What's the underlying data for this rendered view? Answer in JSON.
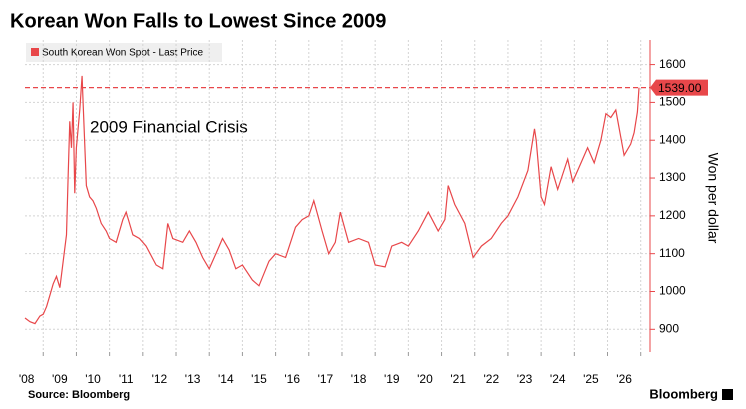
{
  "chart_data": {
    "type": "line",
    "title": "Korean Won Falls to Lowest Since 2009",
    "y_label": "Won per dollar",
    "source": "Source: Bloomberg",
    "brand": "Bloomberg",
    "annotation": "2009 Financial Crisis",
    "grid": true,
    "reference_line": {
      "value": 1539,
      "label": "1539.00",
      "color": "#e8474a"
    },
    "xlim": [
      2007.45,
      2026.28
    ],
    "ylim": [
      840,
      1665
    ],
    "yticks": [
      900,
      1000,
      1100,
      1200,
      1300,
      1400,
      1500,
      1600
    ],
    "xticks": [
      {
        "value": 2008,
        "label": "'08"
      },
      {
        "value": 2009,
        "label": "'09"
      },
      {
        "value": 2010,
        "label": "'10"
      },
      {
        "value": 2011,
        "label": "'11"
      },
      {
        "value": 2012,
        "label": "'12"
      },
      {
        "value": 2013,
        "label": "'13"
      },
      {
        "value": 2014,
        "label": "'14"
      },
      {
        "value": 2015,
        "label": "'15"
      },
      {
        "value": 2016,
        "label": "'16"
      },
      {
        "value": 2017,
        "label": "'17"
      },
      {
        "value": 2018,
        "label": "'18"
      },
      {
        "value": 2019,
        "label": "'19"
      },
      {
        "value": 2020,
        "label": "'20"
      },
      {
        "value": 2021,
        "label": "'21"
      },
      {
        "value": 2022,
        "label": "'22"
      },
      {
        "value": 2023,
        "label": "'23"
      },
      {
        "value": 2024,
        "label": "'24"
      },
      {
        "value": 2025,
        "label": "'25"
      },
      {
        "value": 2026,
        "label": "'26"
      }
    ],
    "series": [
      {
        "name": "South Korean Won Spot - Last Price",
        "color": "#e8474a",
        "x": [
          2007.45,
          2007.6,
          2007.75,
          2007.9,
          2008.0,
          2008.1,
          2008.2,
          2008.3,
          2008.4,
          2008.5,
          2008.6,
          2008.7,
          2008.75,
          2008.8,
          2008.85,
          2008.9,
          2008.95,
          2009.0,
          2009.1,
          2009.17,
          2009.2,
          2009.3,
          2009.4,
          2009.5,
          2009.6,
          2009.75,
          2009.9,
          2010.0,
          2010.2,
          2010.4,
          2010.5,
          2010.7,
          2010.9,
          2011.1,
          2011.4,
          2011.6,
          2011.75,
          2011.9,
          2012.2,
          2012.4,
          2012.6,
          2012.8,
          2013.0,
          2013.2,
          2013.4,
          2013.6,
          2013.8,
          2014.0,
          2014.3,
          2014.5,
          2014.8,
          2015.0,
          2015.3,
          2015.6,
          2015.8,
          2016.0,
          2016.15,
          2016.4,
          2016.6,
          2016.8,
          2016.95,
          2017.2,
          2017.5,
          2017.8,
          2018.0,
          2018.3,
          2018.5,
          2018.8,
          2019.0,
          2019.3,
          2019.6,
          2019.9,
          2020.1,
          2020.2,
          2020.4,
          2020.7,
          2020.95,
          2021.2,
          2021.5,
          2021.8,
          2022.0,
          2022.3,
          2022.6,
          2022.8,
          2022.85,
          2023.0,
          2023.1,
          2023.3,
          2023.5,
          2023.8,
          2023.95,
          2024.2,
          2024.4,
          2024.6,
          2024.8,
          2024.95,
          2025.1,
          2025.25,
          2025.5,
          2025.7,
          2025.8,
          2025.9,
          2025.95
        ],
        "values": [
          930,
          920,
          915,
          935,
          940,
          960,
          990,
          1020,
          1040,
          1010,
          1080,
          1150,
          1300,
          1450,
          1380,
          1500,
          1260,
          1380,
          1480,
          1570,
          1500,
          1280,
          1250,
          1240,
          1220,
          1180,
          1160,
          1140,
          1130,
          1190,
          1210,
          1150,
          1140,
          1120,
          1070,
          1060,
          1180,
          1140,
          1130,
          1160,
          1130,
          1090,
          1060,
          1100,
          1140,
          1110,
          1060,
          1070,
          1030,
          1015,
          1080,
          1100,
          1090,
          1170,
          1190,
          1200,
          1240,
          1160,
          1100,
          1130,
          1210,
          1130,
          1140,
          1130,
          1070,
          1065,
          1120,
          1130,
          1120,
          1160,
          1210,
          1160,
          1190,
          1280,
          1230,
          1180,
          1090,
          1120,
          1140,
          1180,
          1200,
          1250,
          1320,
          1430,
          1400,
          1250,
          1230,
          1330,
          1270,
          1350,
          1290,
          1340,
          1380,
          1340,
          1400,
          1470,
          1460,
          1480,
          1360,
          1390,
          1420,
          1475,
          1539
        ]
      }
    ]
  }
}
